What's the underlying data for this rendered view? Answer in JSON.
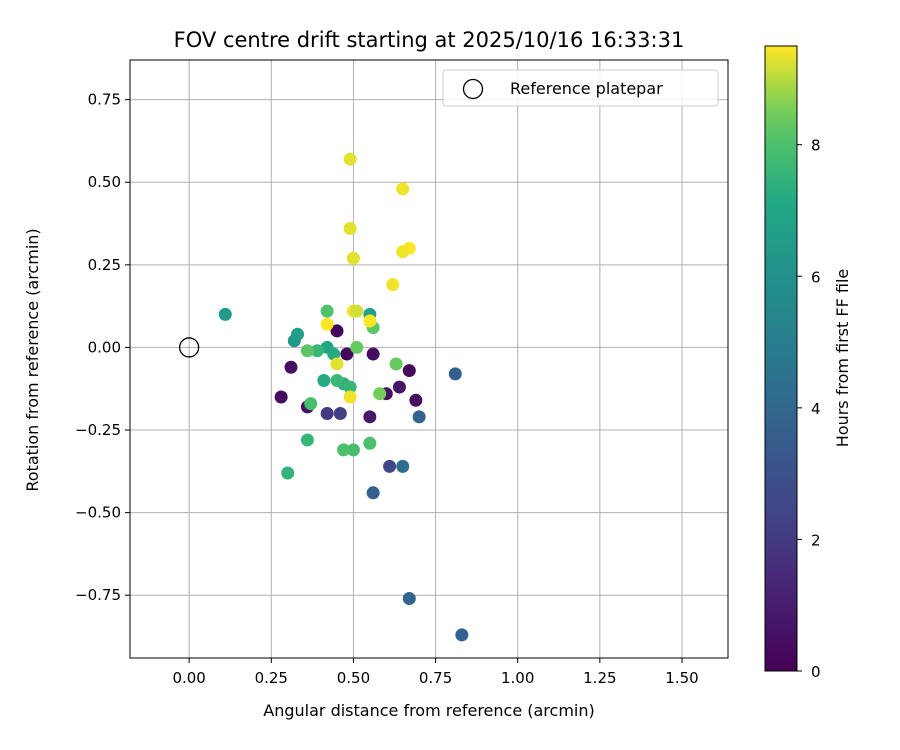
{
  "chart_data": {
    "type": "scatter",
    "title": "FOV centre drift starting at 2025/10/16 16:33:31",
    "xlabel": "Angular distance from reference (arcmin)",
    "ylabel": "Rotation from reference (arcmin)",
    "xlim": [
      -0.18,
      1.64
    ],
    "ylim": [
      -0.94,
      0.87
    ],
    "x_ticks": [
      0.0,
      0.25,
      0.5,
      0.75,
      1.0,
      1.25,
      1.5
    ],
    "x_tick_labels": [
      "0.00",
      "0.25",
      "0.50",
      "0.75",
      "1.00",
      "1.25",
      "1.50"
    ],
    "y_ticks": [
      -0.75,
      -0.5,
      -0.25,
      0.0,
      0.25,
      0.5,
      0.75
    ],
    "y_tick_labels": [
      "−0.75",
      "−0.50",
      "−0.25",
      "0.00",
      "0.25",
      "0.50",
      "0.75"
    ],
    "grid": true,
    "legend": {
      "position": "top-right",
      "entries": [
        {
          "label": "Reference platepar",
          "marker": "open-circle",
          "color": "#000000"
        }
      ]
    },
    "reference_point": {
      "x": 0.0,
      "y": 0.0
    },
    "colorbar": {
      "label": "Hours from first FF file",
      "colormap": "viridis",
      "range": [
        0,
        9.5
      ],
      "ticks": [
        0,
        2,
        4,
        6,
        8
      ],
      "tick_labels": [
        "0",
        "2",
        "4",
        "6",
        "8"
      ]
    },
    "series": [
      {
        "color_by": "hours",
        "points": [
          {
            "x": 0.45,
            "y": 0.05,
            "h": 0.2
          },
          {
            "x": 0.48,
            "y": -0.02,
            "h": 0.3
          },
          {
            "x": 0.56,
            "y": -0.02,
            "h": 0.4
          },
          {
            "x": 0.67,
            "y": -0.07,
            "h": 0.3
          },
          {
            "x": 0.31,
            "y": -0.06,
            "h": 0.5
          },
          {
            "x": 0.28,
            "y": -0.15,
            "h": 0.4
          },
          {
            "x": 0.36,
            "y": -0.18,
            "h": 0.6
          },
          {
            "x": 0.6,
            "y": -0.14,
            "h": 0.5
          },
          {
            "x": 0.64,
            "y": -0.12,
            "h": 0.7
          },
          {
            "x": 0.69,
            "y": -0.16,
            "h": 0.5
          },
          {
            "x": 0.55,
            "y": -0.21,
            "h": 0.8
          },
          {
            "x": 0.42,
            "y": -0.2,
            "h": 2.0
          },
          {
            "x": 0.46,
            "y": -0.2,
            "h": 2.2
          },
          {
            "x": 0.61,
            "y": -0.36,
            "h": 2.5
          },
          {
            "x": 0.7,
            "y": -0.21,
            "h": 3.8
          },
          {
            "x": 0.81,
            "y": -0.08,
            "h": 3.6
          },
          {
            "x": 0.56,
            "y": -0.44,
            "h": 3.6
          },
          {
            "x": 0.65,
            "y": -0.36,
            "h": 4.2
          },
          {
            "x": 0.67,
            "y": -0.76,
            "h": 3.9
          },
          {
            "x": 0.83,
            "y": -0.87,
            "h": 3.7
          },
          {
            "x": 0.11,
            "y": 0.1,
            "h": 6.5
          },
          {
            "x": 0.32,
            "y": 0.02,
            "h": 6.3
          },
          {
            "x": 0.33,
            "y": 0.04,
            "h": 6.6
          },
          {
            "x": 0.55,
            "y": 0.1,
            "h": 6.8
          },
          {
            "x": 0.42,
            "y": 0.0,
            "h": 7.0
          },
          {
            "x": 0.44,
            "y": -0.02,
            "h": 7.2
          },
          {
            "x": 0.41,
            "y": -0.1,
            "h": 7.2
          },
          {
            "x": 0.47,
            "y": -0.11,
            "h": 7.4
          },
          {
            "x": 0.39,
            "y": -0.01,
            "h": 7.6
          },
          {
            "x": 0.45,
            "y": -0.1,
            "h": 7.7
          },
          {
            "x": 0.49,
            "y": -0.12,
            "h": 7.6
          },
          {
            "x": 0.36,
            "y": -0.28,
            "h": 7.6
          },
          {
            "x": 0.3,
            "y": -0.38,
            "h": 7.5
          },
          {
            "x": 0.37,
            "y": -0.17,
            "h": 7.9
          },
          {
            "x": 0.5,
            "y": -0.31,
            "h": 7.9
          },
          {
            "x": 0.47,
            "y": -0.31,
            "h": 8.0
          },
          {
            "x": 0.55,
            "y": -0.29,
            "h": 8.0
          },
          {
            "x": 0.42,
            "y": 0.11,
            "h": 8.1
          },
          {
            "x": 0.56,
            "y": 0.06,
            "h": 8.3
          },
          {
            "x": 0.36,
            "y": -0.01,
            "h": 8.3
          },
          {
            "x": 0.51,
            "y": 0.0,
            "h": 8.4
          },
          {
            "x": 0.63,
            "y": -0.05,
            "h": 8.4
          },
          {
            "x": 0.58,
            "y": -0.14,
            "h": 8.5
          },
          {
            "x": 0.49,
            "y": 0.57,
            "h": 9.3
          },
          {
            "x": 0.65,
            "y": 0.48,
            "h": 9.4
          },
          {
            "x": 0.49,
            "y": 0.36,
            "h": 9.3
          },
          {
            "x": 0.67,
            "y": 0.3,
            "h": 9.5
          },
          {
            "x": 0.65,
            "y": 0.29,
            "h": 9.4
          },
          {
            "x": 0.5,
            "y": 0.27,
            "h": 9.3
          },
          {
            "x": 0.62,
            "y": 0.19,
            "h": 9.4
          },
          {
            "x": 0.5,
            "y": 0.11,
            "h": 9.4
          },
          {
            "x": 0.51,
            "y": 0.11,
            "h": 9.2
          },
          {
            "x": 0.42,
            "y": 0.07,
            "h": 9.5
          },
          {
            "x": 0.55,
            "y": 0.08,
            "h": 9.5
          },
          {
            "x": 0.45,
            "y": -0.05,
            "h": 9.3
          },
          {
            "x": 0.49,
            "y": -0.15,
            "h": 9.4
          }
        ]
      }
    ]
  }
}
